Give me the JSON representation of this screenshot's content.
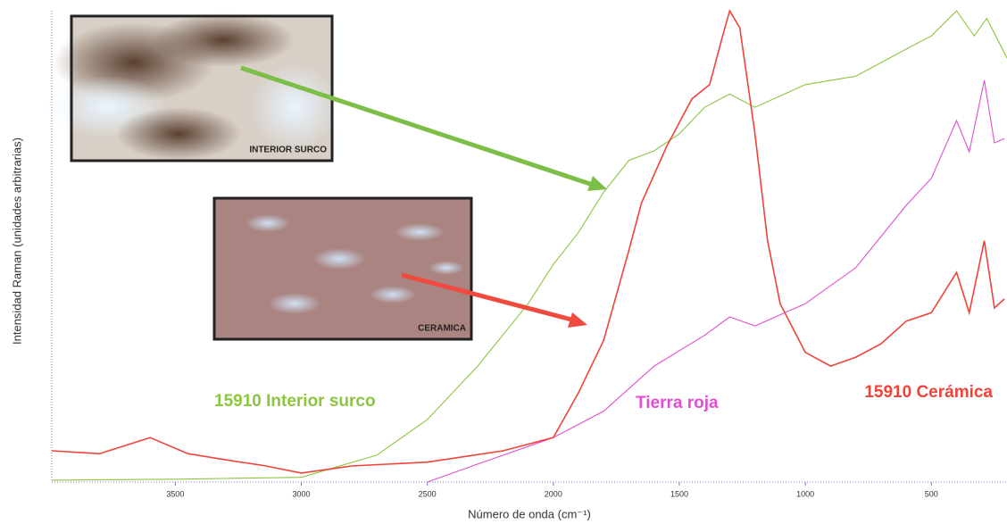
{
  "chart_data": {
    "type": "line",
    "x_label": "Número de onda (cm⁻¹)",
    "y_label": "Intensidad Raman (unidades arbitrarias)",
    "xlim": [
      3990,
      200
    ],
    "ylim": [
      0,
      100
    ],
    "xticks": [
      3500,
      3000,
      2500,
      2000,
      1500,
      1000,
      500
    ],
    "annotations": [
      "INTERIOR SURCO",
      "CERAMICA"
    ],
    "series": [
      {
        "name": "15910 Interior surco",
        "color": "#8cc63f",
        "x": [
          3990,
          3500,
          3000,
          2700,
          2500,
          2300,
          2100,
          2000,
          1900,
          1800,
          1700,
          1600,
          1500,
          1400,
          1300,
          1200,
          1000,
          800,
          600,
          500,
          400,
          330,
          280,
          200
        ],
        "values": [
          0.4,
          0.6,
          1,
          5.7,
          13.2,
          24.5,
          37.7,
          46,
          52.8,
          61.3,
          68,
          70,
          73.6,
          79.2,
          82,
          79.2,
          84,
          85.8,
          91.5,
          94.3,
          99.6,
          94.3,
          98,
          89.6
        ]
      },
      {
        "name": "Tierra roja",
        "color": "#e04fd0",
        "x": [
          2500,
          2300,
          2000,
          1800,
          1600,
          1400,
          1300,
          1200,
          1000,
          800,
          600,
          500,
          400,
          350,
          290,
          250,
          210
        ],
        "values": [
          0,
          3.8,
          9.4,
          15,
          24.5,
          31,
          34.9,
          33,
          37.7,
          45.3,
          58.5,
          64.2,
          76.4,
          69.8,
          84.9,
          71.7,
          72.6
        ]
      },
      {
        "name": "15910 Cerámica",
        "color": "#f0443a",
        "x": [
          3990,
          3800,
          3600,
          3450,
          3300,
          3150,
          3000,
          2800,
          2500,
          2200,
          2000,
          1900,
          1800,
          1700,
          1650,
          1550,
          1450,
          1380,
          1330,
          1300,
          1260,
          1200,
          1150,
          1100,
          1000,
          900,
          800,
          700,
          600,
          500,
          400,
          350,
          290,
          250,
          210
        ],
        "values": [
          6.6,
          6,
          9.4,
          6,
          4.7,
          3.5,
          1.9,
          3.4,
          4.2,
          6.6,
          9.4,
          18.9,
          30,
          49,
          59,
          71,
          81,
          84,
          94,
          99.6,
          96,
          73.6,
          51,
          37.7,
          27.4,
          24.5,
          26.4,
          29.2,
          34,
          35.8,
          44.3,
          35.8,
          51,
          36.8,
          38.7
        ]
      }
    ]
  }
}
